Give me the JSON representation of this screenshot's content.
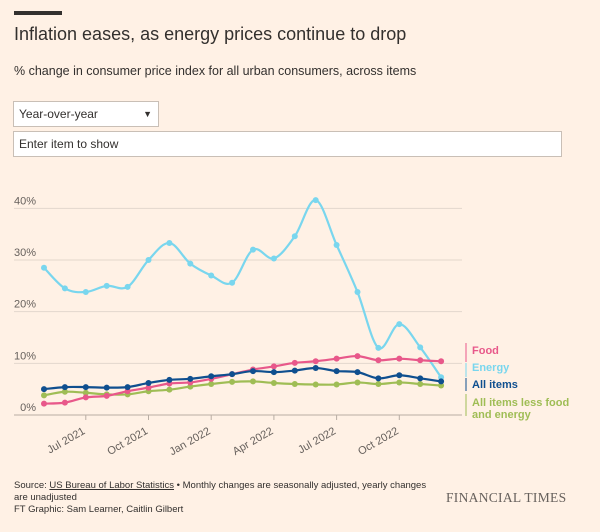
{
  "header": {
    "title": "Inflation eases, as energy prices continue to drop",
    "subtitle": "% change in consumer price index for all urban consumers, across items"
  },
  "controls": {
    "period_select": "Year-over-year",
    "item_input_placeholder": "Enter item to show"
  },
  "footer": {
    "source_prefix": "Source: ",
    "source_link": "US Bureau of Labor Statistics",
    "source_note": " • Monthly changes are seasonally adjusted, yearly changes are unadjusted",
    "credit": "FT Graphic: Sam Learner, Caitlin Gilbert",
    "brand": "FINANCIAL TIMES"
  },
  "colors": {
    "food": "#e8588a",
    "energy": "#79d6ee",
    "all_items": "#0f4f8f",
    "core": "#9fbd55",
    "background": "#fff1e5",
    "gridline": "#e3d7cc"
  },
  "chart_data": {
    "type": "line",
    "x": [
      "2021-05",
      "2021-06",
      "2021-07",
      "2021-08",
      "2021-09",
      "2021-10",
      "2021-11",
      "2021-12",
      "2022-01",
      "2022-02",
      "2022-03",
      "2022-04",
      "2022-05",
      "2022-06",
      "2022-07",
      "2022-08",
      "2022-09",
      "2022-10",
      "2022-11",
      "2022-12",
      "2023-01"
    ],
    "x_ticks": [
      {
        "x": "2021-07",
        "label": "Jul 2021"
      },
      {
        "x": "2021-10",
        "label": "Oct 2021"
      },
      {
        "x": "2022-01",
        "label": "Jan 2022"
      },
      {
        "x": "2022-04",
        "label": "Apr 2022"
      },
      {
        "x": "2022-07",
        "label": "Jul 2022"
      },
      {
        "x": "2022-10",
        "label": "Oct 2022"
      }
    ],
    "y_ticks": [
      0,
      10,
      20,
      30,
      40
    ],
    "y_tick_labels": [
      "0%",
      "10%",
      "20%",
      "30%",
      "40%"
    ],
    "ylim": [
      0,
      42
    ],
    "grid": true,
    "legend": "right",
    "series": [
      {
        "name": "Energy",
        "key": "energy",
        "values": [
          28.5,
          24.5,
          23.8,
          25,
          24.8,
          30,
          33.3,
          29.3,
          27,
          25.6,
          32,
          30.3,
          34.6,
          41.6,
          32.9,
          23.8,
          13,
          17.6,
          13.1,
          7.3,
          null
        ]
      },
      {
        "name": "Food",
        "key": "food",
        "values": [
          2.2,
          2.4,
          3.4,
          3.7,
          4.6,
          5.3,
          6.1,
          6.3,
          7,
          7.9,
          8.8,
          9.4,
          10.1,
          10.4,
          10.9,
          11.4,
          10.6,
          10.9,
          10.6,
          10.4,
          null
        ]
      },
      {
        "name": "All items",
        "key": "all_items",
        "values": [
          5,
          5.4,
          5.4,
          5.3,
          5.4,
          6.2,
          6.8,
          7,
          7.5,
          7.9,
          8.5,
          8.3,
          8.6,
          9.1,
          8.5,
          8.3,
          7.1,
          7.7,
          7.1,
          6.5,
          null
        ]
      },
      {
        "name": "All items less food and energy",
        "key": "core",
        "values": [
          3.8,
          4.5,
          4.3,
          4,
          4,
          4.6,
          4.9,
          5.5,
          6,
          6.4,
          6.5,
          6.2,
          6,
          5.9,
          5.9,
          6.3,
          6,
          6.3,
          6,
          5.7,
          null
        ]
      }
    ],
    "labels": {
      "food": "Food",
      "energy": "Energy",
      "all_items": "All items",
      "core_line1": "All items less food",
      "core_line2": "and energy"
    }
  }
}
